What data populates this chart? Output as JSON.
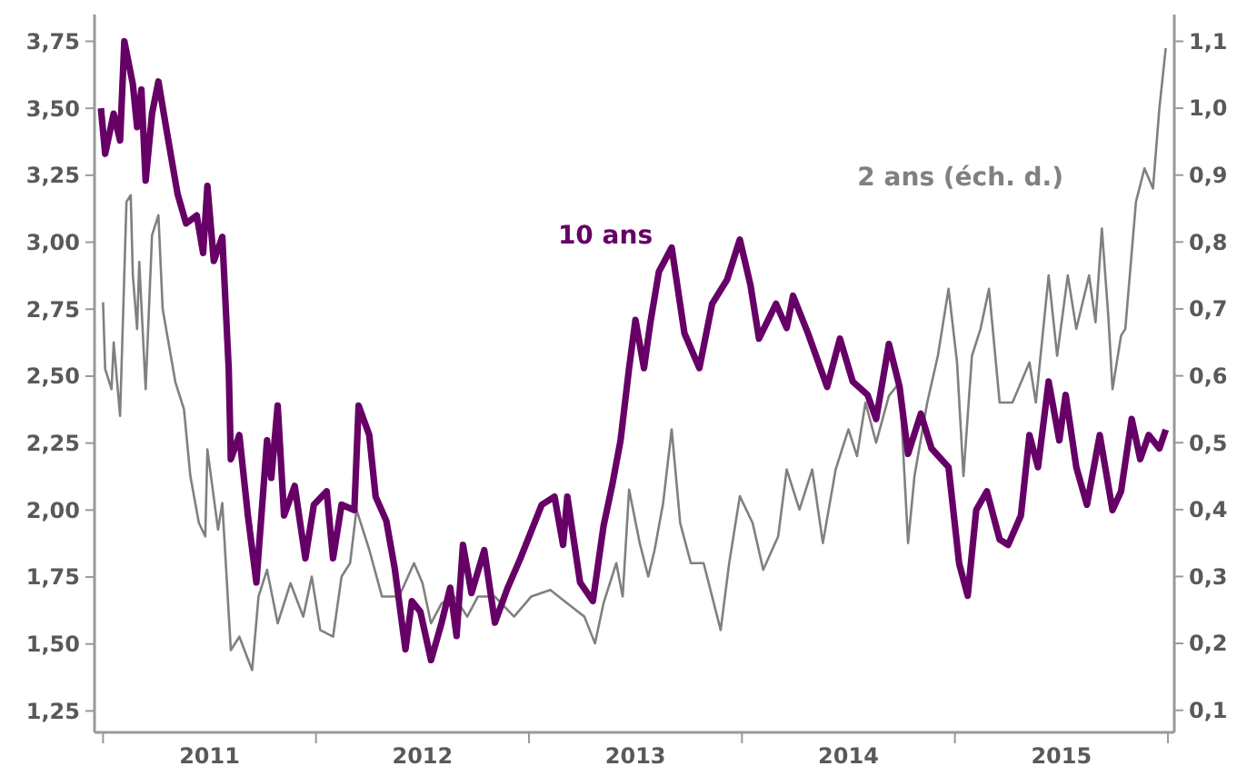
{
  "chart_data": {
    "type": "line",
    "xlim": [
      2010.96,
      2016.03
    ],
    "xticks": [
      {
        "value": 2011,
        "label": null
      },
      {
        "value": 2012,
        "label": null
      },
      {
        "value": 2013,
        "label": null
      },
      {
        "value": 2014,
        "label": null
      },
      {
        "value": 2015,
        "label": null
      },
      {
        "value": 2016,
        "label": null
      },
      {
        "value": 2011.5,
        "label": "2011"
      },
      {
        "value": 2012.5,
        "label": "2012"
      },
      {
        "value": 2013.5,
        "label": "2013"
      },
      {
        "value": 2014.5,
        "label": "2014"
      },
      {
        "value": 2015.5,
        "label": "2015"
      }
    ],
    "ylim": [
      1.17,
      3.85
    ],
    "yticks": [
      {
        "value": 1.25,
        "label": "1,25"
      },
      {
        "value": 1.5,
        "label": "1,50"
      },
      {
        "value": 1.75,
        "label": "1,75"
      },
      {
        "value": 2,
        "label": "2,00"
      },
      {
        "value": 2.25,
        "label": "2,25"
      },
      {
        "value": 2.5,
        "label": "2,50"
      },
      {
        "value": 2.75,
        "label": "2,75"
      },
      {
        "value": 3,
        "label": "3,00"
      },
      {
        "value": 3.25,
        "label": "3,25"
      },
      {
        "value": 3.5,
        "label": "3,50"
      },
      {
        "value": 3.75,
        "label": "3,75"
      }
    ],
    "y2lim": [
      0.067,
      1.14
    ],
    "y2ticks": [
      {
        "value": 0.1,
        "label": "0,1"
      },
      {
        "value": 0.2,
        "label": "0,2"
      },
      {
        "value": 0.3,
        "label": "0,3"
      },
      {
        "value": 0.4,
        "label": "0,4"
      },
      {
        "value": 0.5,
        "label": "0,5"
      },
      {
        "value": 0.6,
        "label": "0,6"
      },
      {
        "value": 0.7,
        "label": "0,7"
      },
      {
        "value": 0.8,
        "label": "0,8"
      },
      {
        "value": 0.9,
        "label": "0,9"
      },
      {
        "value": 1.0,
        "label": "1,0"
      },
      {
        "value": 1.1,
        "label": "1,1"
      }
    ],
    "grid": false,
    "marker": "none",
    "line_style": "solid",
    "series": [
      {
        "name": "2 ans (éch. d.)",
        "color": "#808080",
        "axis": "y2",
        "x": [
          2011.0,
          2011.01,
          2011.04,
          2011.05,
          2011.08,
          2011.11,
          2011.13,
          2011.14,
          2011.16,
          2011.17,
          2011.2,
          2011.23,
          2011.26,
          2011.28,
          2011.34,
          2011.38,
          2011.41,
          2011.45,
          2011.48,
          2011.49,
          2011.54,
          2011.56,
          2011.6,
          2011.64,
          2011.7,
          2011.73,
          2011.77,
          2011.82,
          2011.88,
          2011.94,
          2011.98,
          2012.02,
          2012.08,
          2012.12,
          2012.16,
          2012.19,
          2012.25,
          2012.31,
          2012.35,
          2012.39,
          2012.46,
          2012.5,
          2012.54,
          2012.59,
          2012.65,
          2012.71,
          2012.76,
          2012.84,
          2012.93,
          2013.01,
          2013.1,
          2013.18,
          2013.26,
          2013.31,
          2013.35,
          2013.41,
          2013.44,
          2013.47,
          2013.52,
          2013.56,
          2013.59,
          2013.63,
          2013.67,
          2013.71,
          2013.76,
          2013.82,
          2013.9,
          2013.94,
          2013.99,
          2014.05,
          2014.1,
          2014.17,
          2014.21,
          2014.27,
          2014.33,
          2014.38,
          2014.44,
          2014.5,
          2014.54,
          2014.58,
          2014.63,
          2014.69,
          2014.74,
          2014.78,
          2014.81,
          2014.87,
          2014.92,
          2014.97,
          2015.01,
          2015.04,
          2015.08,
          2015.12,
          2015.16,
          2015.21,
          2015.27,
          2015.31,
          2015.35,
          2015.38,
          2015.44,
          2015.48,
          2015.53,
          2015.57,
          2015.63,
          2015.66,
          2015.69,
          2015.72,
          2015.74,
          2015.78,
          2015.8,
          2015.85,
          2015.89,
          2015.93,
          2015.96,
          2015.98,
          2015.99
        ],
        "values": [
          0.71,
          0.61,
          0.58,
          0.65,
          0.54,
          0.86,
          0.87,
          0.75,
          0.67,
          0.77,
          0.58,
          0.81,
          0.84,
          0.7,
          0.59,
          0.55,
          0.45,
          0.38,
          0.36,
          0.49,
          0.37,
          0.41,
          0.19,
          0.21,
          0.16,
          0.27,
          0.31,
          0.23,
          0.29,
          0.24,
          0.3,
          0.22,
          0.21,
          0.3,
          0.32,
          0.4,
          0.34,
          0.27,
          0.27,
          0.27,
          0.32,
          0.29,
          0.23,
          0.26,
          0.27,
          0.24,
          0.27,
          0.27,
          0.24,
          0.27,
          0.28,
          0.26,
          0.24,
          0.2,
          0.26,
          0.32,
          0.27,
          0.43,
          0.35,
          0.3,
          0.34,
          0.41,
          0.52,
          0.38,
          0.32,
          0.32,
          0.22,
          0.32,
          0.42,
          0.38,
          0.31,
          0.36,
          0.46,
          0.4,
          0.46,
          0.35,
          0.46,
          0.52,
          0.48,
          0.56,
          0.5,
          0.57,
          0.59,
          0.35,
          0.45,
          0.56,
          0.63,
          0.73,
          0.62,
          0.45,
          0.63,
          0.67,
          0.73,
          0.56,
          0.56,
          0.59,
          0.62,
          0.56,
          0.75,
          0.63,
          0.75,
          0.67,
          0.75,
          0.68,
          0.82,
          0.69,
          0.58,
          0.66,
          0.67,
          0.86,
          0.91,
          0.88,
          1.0,
          1.06,
          1.09
        ]
      },
      {
        "name": "10 ans",
        "color": "#660066",
        "x": [
          2010.99,
          2011.01,
          2011.05,
          2011.08,
          2011.1,
          2011.14,
          2011.16,
          2011.18,
          2011.2,
          2011.23,
          2011.26,
          2011.3,
          2011.35,
          2011.39,
          2011.44,
          2011.47,
          2011.49,
          2011.52,
          2011.56,
          2011.59,
          2011.6,
          2011.64,
          2011.68,
          2011.72,
          2011.77,
          2011.79,
          2011.82,
          2011.85,
          2011.9,
          2011.95,
          2011.99,
          2012.05,
          2012.08,
          2012.12,
          2012.18,
          2012.2,
          2012.25,
          2012.28,
          2012.33,
          2012.37,
          2012.42,
          2012.45,
          2012.49,
          2012.54,
          2012.59,
          2012.63,
          2012.66,
          2012.69,
          2012.73,
          2012.79,
          2012.84,
          2012.9,
          2012.96,
          2013.01,
          2013.06,
          2013.12,
          2013.16,
          2013.18,
          2013.24,
          2013.3,
          2013.35,
          2013.39,
          2013.43,
          2013.47,
          2013.5,
          2013.54,
          2013.57,
          2013.61,
          2013.67,
          2013.73,
          2013.8,
          2013.86,
          2013.93,
          2013.99,
          2014.04,
          2014.08,
          2014.16,
          2014.21,
          2014.24,
          2014.31,
          2014.4,
          2014.46,
          2014.52,
          2014.59,
          2014.63,
          2014.69,
          2014.74,
          2014.78,
          2014.84,
          2014.89,
          2014.97,
          2015.02,
          2015.06,
          2015.1,
          2015.15,
          2015.21,
          2015.25,
          2015.31,
          2015.35,
          2015.39,
          2015.44,
          2015.49,
          2015.52,
          2015.57,
          2015.62,
          2015.68,
          2015.74,
          2015.78,
          2015.83,
          2015.87,
          2015.91,
          2015.96,
          2015.99
        ],
        "values": [
          3.5,
          3.33,
          3.48,
          3.38,
          3.75,
          3.59,
          3.43,
          3.57,
          3.23,
          3.48,
          3.6,
          3.41,
          3.18,
          3.07,
          3.1,
          2.96,
          3.21,
          2.93,
          3.02,
          2.53,
          2.19,
          2.28,
          1.98,
          1.73,
          2.26,
          2.12,
          2.39,
          1.98,
          2.09,
          1.82,
          2.02,
          2.07,
          1.82,
          2.02,
          2.0,
          2.39,
          2.28,
          2.05,
          1.96,
          1.78,
          1.48,
          1.66,
          1.62,
          1.44,
          1.58,
          1.71,
          1.53,
          1.87,
          1.69,
          1.85,
          1.58,
          1.71,
          1.82,
          1.92,
          2.02,
          2.05,
          1.87,
          2.05,
          1.73,
          1.66,
          1.94,
          2.09,
          2.26,
          2.53,
          2.71,
          2.53,
          2.7,
          2.89,
          2.98,
          2.66,
          2.53,
          2.77,
          2.86,
          3.01,
          2.84,
          2.64,
          2.77,
          2.68,
          2.8,
          2.66,
          2.46,
          2.64,
          2.48,
          2.43,
          2.34,
          2.62,
          2.46,
          2.21,
          2.36,
          2.23,
          2.16,
          1.8,
          1.68,
          2.0,
          2.07,
          1.89,
          1.87,
          1.98,
          2.28,
          2.16,
          2.48,
          2.26,
          2.43,
          2.16,
          2.02,
          2.28,
          2.0,
          2.07,
          2.34,
          2.19,
          2.28,
          2.23,
          2.3
        ]
      }
    ]
  }
}
